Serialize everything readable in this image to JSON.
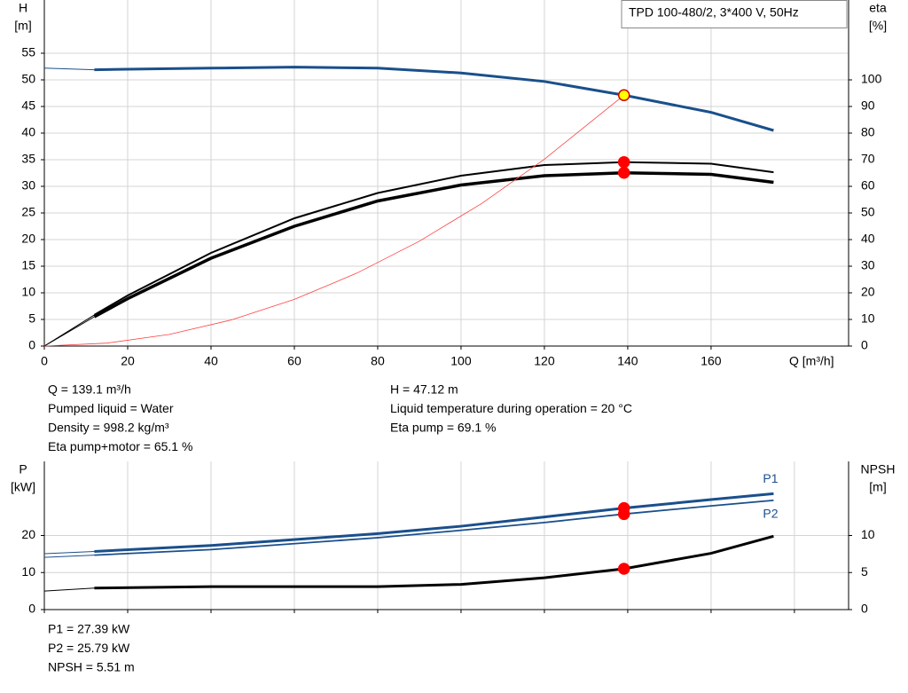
{
  "chart_data": [
    {
      "type": "line",
      "title": "TPD 100-480/2, 3*400 V, 50Hz",
      "xlabel": "Q [m³/h]",
      "ylabel": "H",
      "yunit": "[m]",
      "y2label": "eta",
      "y2unit": "[%]",
      "xlim": [
        0,
        193
      ],
      "xticks": [
        0,
        20,
        40,
        60,
        80,
        100,
        120,
        140,
        160
      ],
      "ylim": [
        0,
        65
      ],
      "yticks": [
        0,
        5,
        10,
        15,
        20,
        25,
        30,
        35,
        40,
        45,
        50,
        55
      ],
      "y2lim": [
        0,
        130
      ],
      "y2ticks": [
        0,
        10,
        20,
        30,
        40,
        50,
        60,
        70,
        80,
        90,
        100
      ],
      "grid": true,
      "xtick_labels": true,
      "series": [
        {
          "color": "#1a4f8b",
          "line_width": 1,
          "x": [
            0,
            12
          ],
          "values": [
            52.2,
            51.9
          ]
        },
        {
          "color": "#1a4f8b",
          "line_width": 3,
          "x": [
            12,
            20,
            40,
            60,
            80,
            100,
            120,
            139.1,
            160,
            175
          ],
          "values": [
            51.9,
            52.0,
            52.2,
            52.4,
            52.2,
            51.3,
            49.7,
            47.12,
            43.9,
            40.5
          ]
        },
        {
          "color": "#000000",
          "line_width": 1,
          "axis": "y2",
          "x": [
            0,
            12
          ],
          "values": [
            0,
            11.7
          ]
        },
        {
          "color": "#000000",
          "line_width": 1,
          "axis": "y2",
          "x": [
            0,
            12
          ],
          "values": [
            0,
            11
          ]
        },
        {
          "color": "#000000",
          "line_width": 2,
          "axis": "y2",
          "x": [
            12,
            20,
            40,
            60,
            80,
            100,
            120,
            139.1,
            160,
            175
          ],
          "values": [
            11.7,
            19,
            35,
            48,
            57.5,
            64,
            68,
            69.1,
            68.5,
            65.3
          ]
        },
        {
          "color": "#000000",
          "line_width": 3.5,
          "axis": "y2",
          "x": [
            12,
            20,
            40,
            60,
            80,
            100,
            120,
            139.1,
            160,
            175
          ],
          "values": [
            11,
            17.8,
            33,
            45,
            54.5,
            60.5,
            64,
            65.1,
            64.5,
            61.5
          ]
        },
        {
          "color": "#ff4040",
          "line_width": 0.8,
          "x": [
            0,
            15,
            30,
            45,
            60,
            75,
            90,
            105,
            120,
            139.1
          ],
          "values": [
            0,
            0.55,
            2.19,
            4.93,
            8.77,
            13.7,
            19.7,
            26.8,
            35.1,
            47.12
          ]
        }
      ],
      "points": [
        {
          "x": 139.1,
          "y": 47.12,
          "color": "#ffff00",
          "stroke": "#d00000"
        },
        {
          "x": 139.1,
          "y": 69.1,
          "axis": "y2",
          "color": "#ff0000"
        },
        {
          "x": 139.1,
          "y": 65.1,
          "axis": "y2",
          "color": "#ff0000"
        }
      ]
    },
    {
      "type": "line",
      "ylabel": "P",
      "yunit": "[kW]",
      "y2label": "NPSH",
      "y2unit": "[m]",
      "xlim": [
        0,
        193
      ],
      "xticks": [
        0,
        20,
        40,
        60,
        80,
        100,
        120,
        140,
        160,
        180
      ],
      "ylim": [
        0,
        40
      ],
      "yticks": [
        0,
        10,
        20
      ],
      "y2lim": [
        0,
        20
      ],
      "y2ticks": [
        0,
        5,
        10
      ],
      "grid": true,
      "xtick_labels": false,
      "series": [
        {
          "color": "#1a4f8b",
          "line_width": 1,
          "x": [
            0,
            12
          ],
          "values": [
            15.1,
            15.7
          ]
        },
        {
          "name": "P1",
          "color": "#1a4f8b",
          "line_width": 3,
          "x": [
            12,
            40,
            80,
            100,
            120,
            139.1,
            160,
            175
          ],
          "values": [
            15.7,
            17.3,
            20.5,
            22.5,
            25,
            27.39,
            29.7,
            31.3
          ]
        },
        {
          "color": "#1a4f8b",
          "line_width": 1,
          "x": [
            0,
            12
          ],
          "values": [
            14.1,
            14.7
          ]
        },
        {
          "name": "P2",
          "color": "#1a4f8b",
          "line_width": 1.8,
          "x": [
            12,
            40,
            80,
            100,
            120,
            139.1,
            160,
            175
          ],
          "values": [
            14.7,
            16.2,
            19.4,
            21.4,
            23.5,
            25.79,
            28,
            29.5
          ]
        },
        {
          "color": "#000000",
          "line_width": 1,
          "axis": "y2",
          "x": [
            0,
            12
          ],
          "values": [
            2.5,
            2.9
          ]
        },
        {
          "color": "#000000",
          "line_width": 3,
          "axis": "y2",
          "x": [
            12,
            40,
            80,
            100,
            120,
            139.1,
            160,
            175
          ],
          "values": [
            2.9,
            3.1,
            3.1,
            3.4,
            4.3,
            5.51,
            7.6,
            9.9
          ]
        }
      ],
      "points": [
        {
          "x": 139.1,
          "y": 27.39,
          "color": "#ff0000"
        },
        {
          "x": 139.1,
          "y": 25.79,
          "color": "#ff0000"
        },
        {
          "x": 139.1,
          "y": 5.51,
          "axis": "y2",
          "color": "#ff0000"
        }
      ]
    }
  ],
  "readouts": [
    [
      "Q = 139.1 m³/h",
      "Pumped liquid = Water",
      "Density = 998.2 kg/m³",
      "Eta pump+motor = 65.1 %"
    ],
    [
      "H = 47.12 m",
      "Liquid temperature during operation = 20 °C",
      "Eta pump = 69.1 %"
    ],
    [
      "P1 = 27.39 kW",
      "P2 = 25.79 kW",
      "NPSH = 5.51 m"
    ]
  ]
}
